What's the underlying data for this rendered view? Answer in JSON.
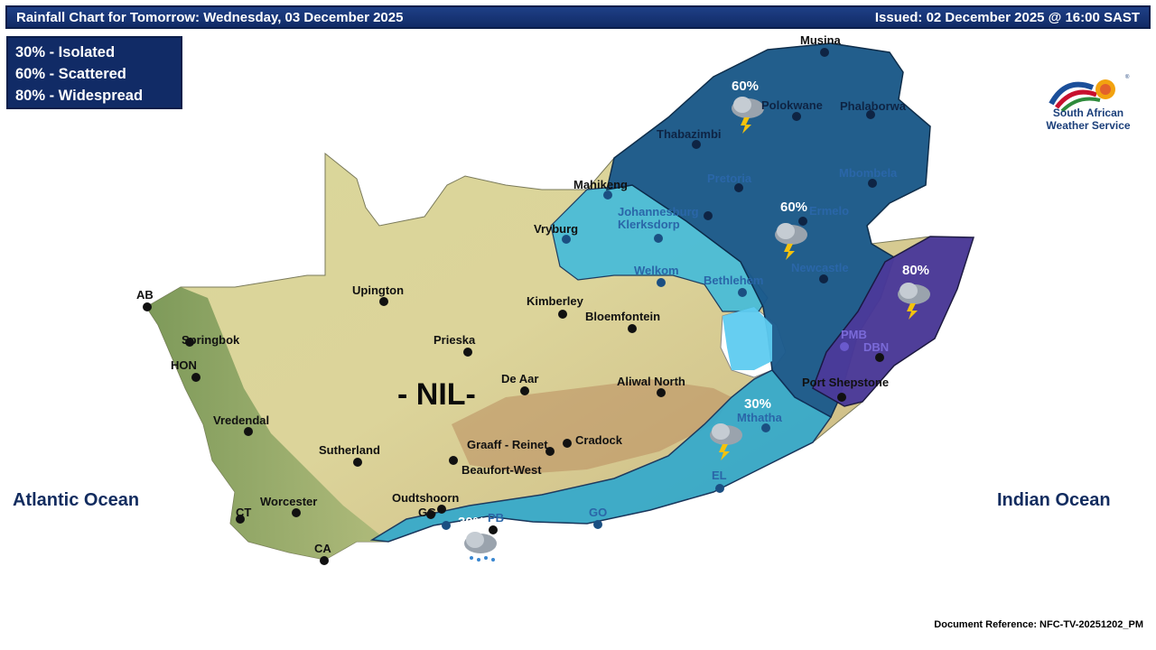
{
  "header": {
    "title": "Rainfall Chart for Tomorrow: Wednesday, 03 December 2025",
    "issued": "Issued: 02 December 2025 @ 16:00 SAST"
  },
  "legend": {
    "items": [
      "30% - Isolated",
      "60% - Scattered",
      "80% - Widespread"
    ]
  },
  "oceans": {
    "west": "Atlantic Ocean",
    "east": "Indian Ocean"
  },
  "logo": {
    "line1": "South African",
    "line2": "Weather Service"
  },
  "document_reference": "Document Reference: NFC-TV-20251202_PM",
  "map": {
    "no_rain_label": "- NIL-",
    "zones": [
      {
        "name": "northeast",
        "probability": "60%",
        "color": "#1b5a8c"
      },
      {
        "name": "central",
        "probability": "60%",
        "color": "#1b5a8c"
      },
      {
        "name": "kzn",
        "probability": "80%",
        "color": "#4b3a9a"
      },
      {
        "name": "eastcape",
        "probability": "30%",
        "color": "#33a9cc"
      },
      {
        "name": "southcoast",
        "probability": "30%",
        "color": "#33a9cc"
      }
    ],
    "cities": {
      "musina": "Musina",
      "polokwane": "Polokwane",
      "phalaborwa": "Phalaborwa",
      "thabazimbi": "Thabazimbi",
      "mahikeng": "Mahikeng",
      "pretoria": "Pretoria",
      "mbombela": "Mbombela",
      "johannesburg": "Johannesburg",
      "klerksdorp": "Klerksdorp",
      "ermelo": "Ermelo",
      "vryburg": "Vryburg",
      "welkom": "Welkom",
      "bethlehem": "Bethlehem",
      "newcastle": "Newcastle",
      "ab": "AB",
      "upington": "Upington",
      "kimberley": "Kimberley",
      "bloemfontein": "Bloemfontein",
      "springbok": "Springbok",
      "prieska": "Prieska",
      "hon": "HON",
      "pmb": "PMB",
      "dbn": "DBN",
      "de_aar": "De Aar",
      "aliwal_north": "Aliwal North",
      "port_shepstone": "Port Shepstone",
      "vredendal": "Vredendal",
      "mthatha": "Mthatha",
      "graaff_reinet": "Graaff - Reinet",
      "cradock": "Cradock",
      "sutherland": "Sutherland",
      "beaufort_west": "Beaufort-West",
      "el": "EL",
      "oudtshoorn": "Oudtshoorn",
      "worcester": "Worcester",
      "ct": "CT",
      "gg": "GG",
      "pb": "PB",
      "go": "GO",
      "ca": "CA"
    }
  }
}
